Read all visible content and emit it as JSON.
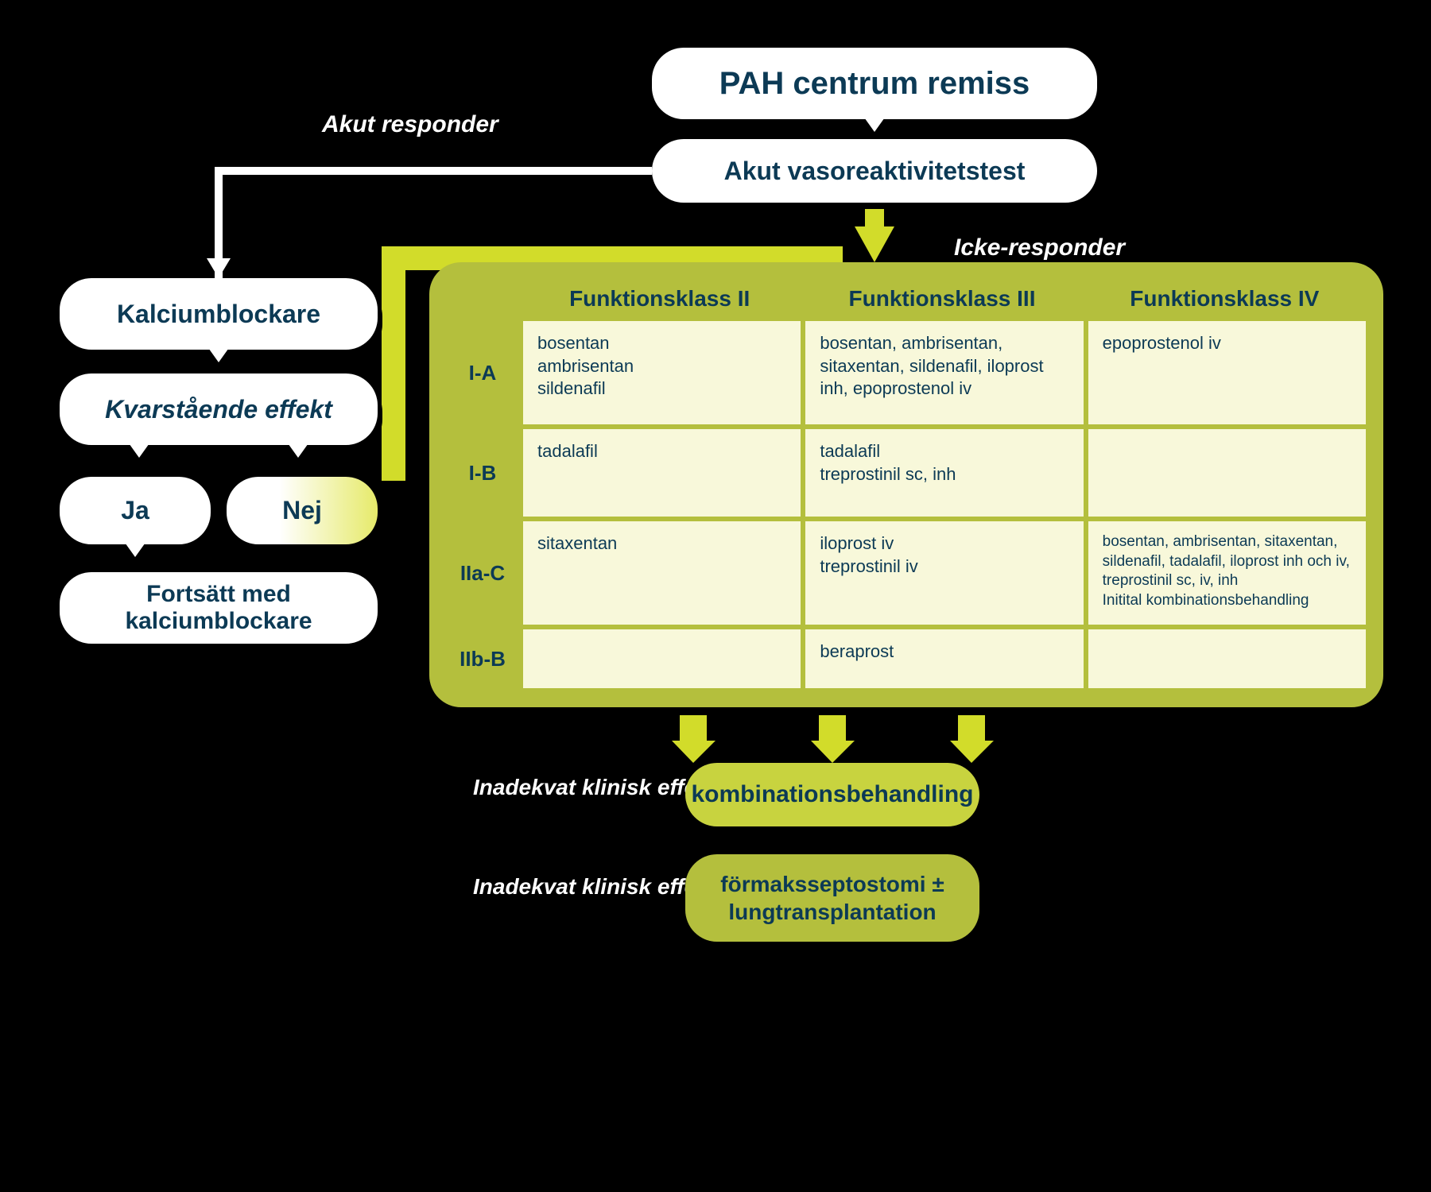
{
  "type": "flowchart",
  "background_color": "#000000",
  "text_color": "#0c3a55",
  "accent_yellow": "#b4bf3d",
  "accent_yellow_light": "#f8f8da",
  "accent_yellow_mid": "#c8d33f",
  "white": "#ffffff",
  "top": {
    "title": "PAH centrum remiss",
    "subtitle": "Akut vasoreaktivitetstest"
  },
  "labels": {
    "akut_responder": "Akut responder",
    "icke_responder": "Icke-responder",
    "inadekvat": "Inadekvat klinisk effekt"
  },
  "left": {
    "kalcium": "Kalciumblockare",
    "kvar": "Kvarstående effekt",
    "ja": "Ja",
    "nej": "Nej",
    "forts": "Fortsätt med kalciumblockare"
  },
  "panel": {
    "headers": [
      "Funktionsklass II",
      "Funktionsklass III",
      "Funktionsklass IV"
    ],
    "row_labels": [
      "I-A",
      "I-B",
      "IIa-C",
      "IIb-B"
    ],
    "rows": [
      [
        "bosentan\nambrisentan\nsildenafil",
        "bosentan, ambrisentan, sitaxentan, sildenafil, iloprost inh, epoprostenol iv",
        "epoprostenol iv"
      ],
      [
        "tadalafil",
        "tadalafil\ntreprostinil sc, inh",
        ""
      ],
      [
        "sitaxentan",
        "iloprost iv\ntreprostinil iv",
        "bosentan, ambrisentan, sitaxentan, sildenafil, tadalafil, iloprost inh och iv, treprostinil sc, iv, inh\nInitital kombinationsbehandling"
      ],
      [
        "",
        "beraprost",
        ""
      ]
    ]
  },
  "bottom": {
    "combo": "kombinationsbehandling",
    "formak": "förmaksseptostomi ± lungtransplantation"
  }
}
